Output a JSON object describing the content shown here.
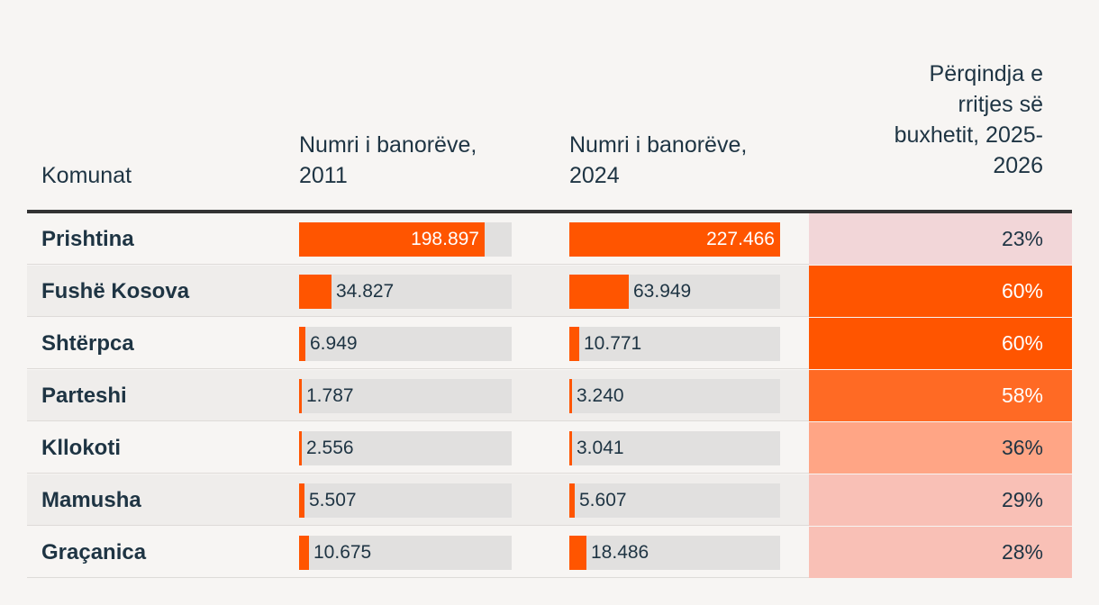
{
  "headers": {
    "municipality": "Komunat",
    "pop_2011": "Numri i banorëve,\n2011",
    "pop_2024": "Numri i banorëve,\n2024",
    "budget_growth": "Përqindja e\nrritjes së\nbuxhetit, 2025-\n2026"
  },
  "colors": {
    "bar": "#ff5500",
    "track": "#e1e0df",
    "pct_scale": [
      "#f2d6d8",
      "#f9c0b6",
      "#ffa585",
      "#ff6a24",
      "#ff5500"
    ]
  },
  "chart_data": {
    "type": "table",
    "columns": [
      "Komunat",
      "Numri i banorëve, 2011",
      "Numri i banorëve, 2024",
      "Përqindja e rritjes së buxhetit, 2025-2026"
    ],
    "bar_max": 227466,
    "rows": [
      {
        "name": "Prishtina",
        "pop2011": 198897,
        "pop2011_label": "198.897",
        "pop2024": 227466,
        "pop2024_label": "227.466",
        "growth": 23,
        "growth_label": "23%"
      },
      {
        "name": "Fushë Kosova",
        "pop2011": 34827,
        "pop2011_label": "34.827",
        "pop2024": 63949,
        "pop2024_label": "63.949",
        "growth": 60,
        "growth_label": "60%"
      },
      {
        "name": "Shtërpca",
        "pop2011": 6949,
        "pop2011_label": "6.949",
        "pop2024": 10771,
        "pop2024_label": "10.771",
        "growth": 60,
        "growth_label": "60%"
      },
      {
        "name": "Parteshi",
        "pop2011": 1787,
        "pop2011_label": "1.787",
        "pop2024": 3240,
        "pop2024_label": "3.240",
        "growth": 58,
        "growth_label": "58%"
      },
      {
        "name": "Kllokoti",
        "pop2011": 2556,
        "pop2011_label": "2.556",
        "pop2024": 3041,
        "pop2024_label": "3.041",
        "growth": 36,
        "growth_label": "36%"
      },
      {
        "name": "Mamusha",
        "pop2011": 5507,
        "pop2011_label": "5.507",
        "pop2024": 5607,
        "pop2024_label": "5.607",
        "growth": 29,
        "growth_label": "29%"
      },
      {
        "name": "Graçanica",
        "pop2011": 10675,
        "pop2011_label": "10.675",
        "pop2024": 18486,
        "pop2024_label": "18.486",
        "growth": 28,
        "growth_label": "28%"
      }
    ]
  }
}
